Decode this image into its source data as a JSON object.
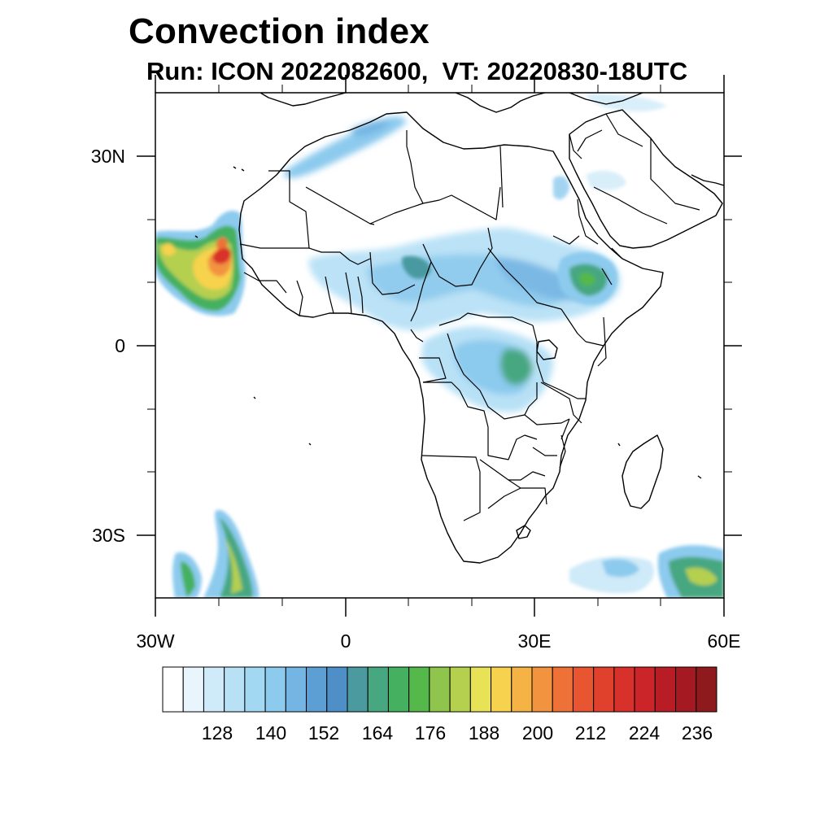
{
  "title": "Convection index",
  "subtitle": "Run: ICON 2022082600,  VT: 20220830-18UTC",
  "axes": {
    "x_labels": [
      "30W",
      "0",
      "30E",
      "60E"
    ],
    "y_labels": [
      "30N",
      "0",
      "30S"
    ],
    "lon_range": [
      -30,
      60
    ],
    "lat_range": [
      -40,
      40
    ]
  },
  "colorbar": {
    "labels": [
      "128",
      "140",
      "152",
      "164",
      "176",
      "188",
      "200",
      "212",
      "224",
      "236"
    ],
    "colors": [
      "#ffffff",
      "#e8f5fc",
      "#cfeaf8",
      "#b8e1f6",
      "#a3d8f3",
      "#8ccaee",
      "#74b5e3",
      "#5c9fd5",
      "#4f8fc8",
      "#4a9aa0",
      "#47a781",
      "#45b05f",
      "#55b84a",
      "#8fc44d",
      "#b5cf4f",
      "#e8e356",
      "#f7d24e",
      "#f5b245",
      "#f29340",
      "#ee7238",
      "#e85530",
      "#e0412c",
      "#d8302a",
      "#cb2429",
      "#b81d26",
      "#a51a22",
      "#8e1a1d"
    ]
  },
  "map_features": {
    "coastline": "coastline",
    "borders": "country-borders",
    "fields": [
      {
        "name": "convection-west-africa-atlantic",
        "level": "high"
      },
      {
        "name": "convection-sahel",
        "level": "medium"
      },
      {
        "name": "convection-ethiopia",
        "level": "medium"
      },
      {
        "name": "convection-congo",
        "level": "medium"
      },
      {
        "name": "convection-south-atlantic",
        "level": "medium"
      },
      {
        "name": "convection-indian-ocean",
        "level": "medium"
      }
    ]
  }
}
